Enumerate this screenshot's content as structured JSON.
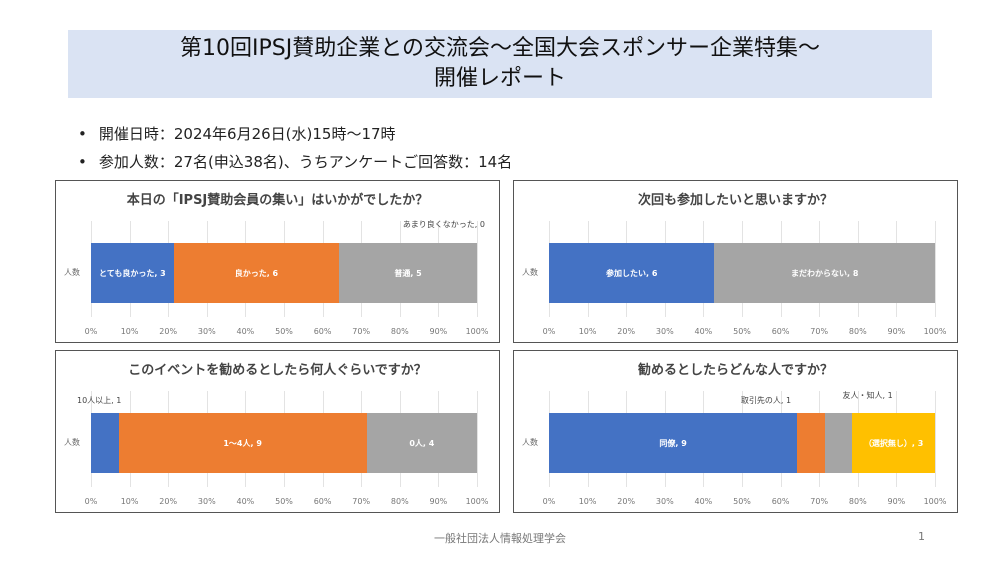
{
  "title": {
    "line1": "第10回IPSJ賛助企業との交流会～全国大会スポンサー企業特集～",
    "line2": "開催レポート"
  },
  "bullets": [
    "開催日時：2024年6月26日(水)15時～17時",
    "参加人数：27名(申込38名)、うちアンケートご回答数：14名"
  ],
  "footer": "一般社団法人情報処理学会",
  "page_number": "1",
  "chart_data": [
    {
      "type": "bar",
      "stacked": "percent",
      "title": "本日の「IPSJ賛助会員の集い」はいかがでしたか？",
      "ylabel": "人数",
      "xlim": [
        0,
        100
      ],
      "ticks": [
        "0%",
        "10%",
        "20%",
        "30%",
        "40%",
        "50%",
        "60%",
        "70%",
        "80%",
        "90%",
        "100%"
      ],
      "series": [
        {
          "name": "とても良かった",
          "value": 3,
          "label": "とても良かった, 3",
          "color": "#4472c4"
        },
        {
          "name": "良かった",
          "value": 6,
          "label": "良かった, 6",
          "color": "#ed7d31"
        },
        {
          "name": "普通",
          "value": 5,
          "label": "普通, 5",
          "color": "#a5a5a5"
        },
        {
          "name": "あまり良くなかった",
          "value": 0,
          "label": "あまり良くなかった, 0",
          "color": "#ffc000"
        }
      ]
    },
    {
      "type": "bar",
      "stacked": "percent",
      "title": "次回も参加したいと思いますか？",
      "ylabel": "人数",
      "xlim": [
        0,
        100
      ],
      "ticks": [
        "0%",
        "10%",
        "20%",
        "30%",
        "40%",
        "50%",
        "60%",
        "70%",
        "80%",
        "90%",
        "100%"
      ],
      "series": [
        {
          "name": "参加したい",
          "value": 6,
          "label": "参加したい, 6",
          "color": "#4472c4"
        },
        {
          "name": "まだわからない",
          "value": 8,
          "label": "まだわからない, 8",
          "color": "#a5a5a5"
        }
      ]
    },
    {
      "type": "bar",
      "stacked": "percent",
      "title": "このイベントを勧めるとしたら何人ぐらいですか？",
      "ylabel": "人数",
      "xlim": [
        0,
        100
      ],
      "ticks": [
        "0%",
        "10%",
        "20%",
        "30%",
        "40%",
        "50%",
        "60%",
        "70%",
        "80%",
        "90%",
        "100%"
      ],
      "series": [
        {
          "name": "10人以上",
          "value": 1,
          "label": "10人以上, 1",
          "color": "#4472c4"
        },
        {
          "name": "1～4人",
          "value": 9,
          "label": "1～4人, 9",
          "color": "#ed7d31"
        },
        {
          "name": "0人",
          "value": 4,
          "label": "0人, 4",
          "color": "#a5a5a5"
        }
      ]
    },
    {
      "type": "bar",
      "stacked": "percent",
      "title": "勧めるとしたらどんな人ですか？",
      "ylabel": "人数",
      "xlim": [
        0,
        100
      ],
      "ticks": [
        "0%",
        "10%",
        "20%",
        "30%",
        "40%",
        "50%",
        "60%",
        "70%",
        "80%",
        "90%",
        "100%"
      ],
      "series": [
        {
          "name": "同僚",
          "value": 9,
          "label": "同僚, 9",
          "color": "#4472c4"
        },
        {
          "name": "取引先の人",
          "value": 1,
          "label": "取引先の人, 1",
          "color": "#ed7d31"
        },
        {
          "name": "友人・知人",
          "value": 1,
          "label": "友人・知人, 1",
          "color": "#a5a5a5"
        },
        {
          "name": "（選択無し）",
          "value": 3,
          "label": "（選択無し）, 3",
          "color": "#ffc000"
        }
      ]
    }
  ]
}
